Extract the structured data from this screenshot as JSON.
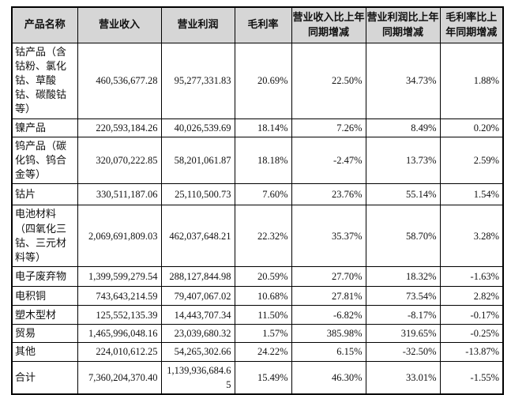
{
  "table": {
    "title_semantic": "主营业务分产品情况表",
    "header_bg_color": "#d6d6d6",
    "border_color": "#000000",
    "columns": [
      {
        "key": "name",
        "label": "产品名称"
      },
      {
        "key": "revenue",
        "label": "营业收入"
      },
      {
        "key": "profit",
        "label": "营业利润"
      },
      {
        "key": "margin",
        "label": "毛利率"
      },
      {
        "key": "revenue_yoy",
        "label": "营业收入比上年同期增减"
      },
      {
        "key": "profit_yoy",
        "label": "营业利润比上年同期增减"
      },
      {
        "key": "margin_yoy",
        "label": "毛利率比上年同期增减"
      }
    ],
    "rows": [
      {
        "name": "钴产品（含钴粉、氯化钴、草酸钴、碳酸钴等）",
        "revenue": "460,536,677.28",
        "profit": "95,277,331.83",
        "margin": "20.69%",
        "revenue_yoy": "22.50%",
        "profit_yoy": "34.73%",
        "margin_yoy": "1.88%"
      },
      {
        "name": "镍产品",
        "revenue": "220,593,184.26",
        "profit": "40,026,539.69",
        "margin": "18.14%",
        "revenue_yoy": "7.26%",
        "profit_yoy": "8.49%",
        "margin_yoy": "0.20%"
      },
      {
        "name": "钨产品（碳化钨、钨合金等）",
        "revenue": "320,070,222.85",
        "profit": "58,201,061.87",
        "margin": "18.18%",
        "revenue_yoy": "-2.47%",
        "profit_yoy": "13.73%",
        "margin_yoy": "2.59%"
      },
      {
        "name": "钴片",
        "revenue": "330,511,187.06",
        "profit": "25,110,500.73",
        "margin": "7.60%",
        "revenue_yoy": "23.76%",
        "profit_yoy": "55.14%",
        "margin_yoy": "1.54%"
      },
      {
        "name": "电池材料（四氧化三钴、三元材料等）",
        "revenue": "2,069,691,809.03",
        "profit": "462,037,648.21",
        "margin": "22.32%",
        "revenue_yoy": "35.37%",
        "profit_yoy": "58.70%",
        "margin_yoy": "3.28%"
      },
      {
        "name": "电子废弃物",
        "revenue": "1,399,599,279.54",
        "profit": "288,127,844.98",
        "margin": "20.59%",
        "revenue_yoy": "27.70%",
        "profit_yoy": "18.32%",
        "margin_yoy": "-1.63%"
      },
      {
        "name": "电积铜",
        "revenue": "743,643,214.59",
        "profit": "79,407,067.02",
        "margin": "10.68%",
        "revenue_yoy": "27.81%",
        "profit_yoy": "73.54%",
        "margin_yoy": "2.82%"
      },
      {
        "name": "塑木型材",
        "revenue": "125,552,135.39",
        "profit": "14,443,707.34",
        "margin": "11.50%",
        "revenue_yoy": "-6.82%",
        "profit_yoy": "-8.17%",
        "margin_yoy": "-0.17%"
      },
      {
        "name": "贸易",
        "revenue": "1,465,996,048.16",
        "profit": "23,039,680.32",
        "margin": "1.57%",
        "revenue_yoy": "385.98%",
        "profit_yoy": "319.65%",
        "margin_yoy": "-0.25%"
      },
      {
        "name": "其他",
        "revenue": "224,010,612.25",
        "profit": "54,265,302.66",
        "margin": "24.22%",
        "revenue_yoy": "6.15%",
        "profit_yoy": "-32.50%",
        "margin_yoy": "-13.87%"
      },
      {
        "name": "合计",
        "revenue": "7,360,204,370.40",
        "profit": "1,139,936,684.65",
        "margin": "15.49%",
        "revenue_yoy": "46.30%",
        "profit_yoy": "33.01%",
        "margin_yoy": "-1.55%"
      }
    ]
  }
}
